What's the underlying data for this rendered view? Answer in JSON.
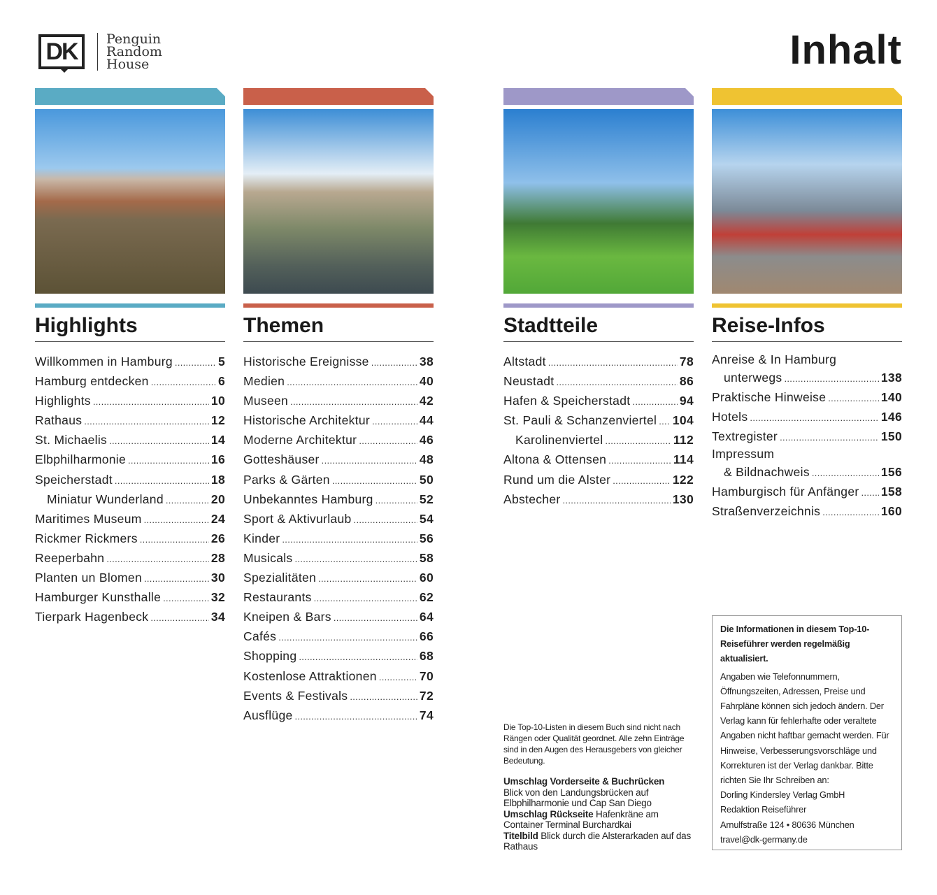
{
  "header": {
    "logo_mark": "DK",
    "publisher_lines": [
      "Penguin",
      "Random",
      "House"
    ],
    "title": "Inhalt"
  },
  "colors": {
    "highlights": "#5aabc4",
    "themen": "#c9604a",
    "stadtteile": "#9e98c8",
    "reise_infos": "#efc332"
  },
  "sections": [
    {
      "key": "highlights",
      "heading": "Highlights",
      "photo": "elbphilharmonie-harbour-photo",
      "entries": [
        {
          "title": "Willkommen in Hamburg",
          "page": "5"
        },
        {
          "title": "Hamburg entdecken",
          "page": "6"
        },
        {
          "title": "Highlights",
          "page": "10"
        },
        {
          "title": "Rathaus",
          "page": "12"
        },
        {
          "title": "St. Michaelis",
          "page": "14"
        },
        {
          "title": "Elbphilharmonie",
          "page": "16"
        },
        {
          "title": "Speicherstadt",
          "page": "18"
        },
        {
          "title": "Miniatur Wunderland",
          "page": "20",
          "indent": true
        },
        {
          "title": "Maritimes Museum",
          "page": "24"
        },
        {
          "title": "Rickmer Rickmers",
          "page": "26"
        },
        {
          "title": "Reeperbahn",
          "page": "28"
        },
        {
          "title": "Planten un Blomen",
          "page": "30"
        },
        {
          "title": "Hamburger Kunsthalle",
          "page": "32"
        },
        {
          "title": "Tierpark Hagenbeck",
          "page": "34"
        }
      ]
    },
    {
      "key": "themen",
      "heading": "Themen",
      "photo": "rathaus-alster-photo",
      "entries": [
        {
          "title": "Historische Ereignisse",
          "page": "38"
        },
        {
          "title": "Medien",
          "page": "40"
        },
        {
          "title": "Museen",
          "page": "42"
        },
        {
          "title": "Historische Architektur",
          "page": "44"
        },
        {
          "title": "Moderne Architektur",
          "page": "46"
        },
        {
          "title": "Gotteshäuser",
          "page": "48"
        },
        {
          "title": "Parks & Gärten",
          "page": "50"
        },
        {
          "title": "Unbekanntes Hamburg",
          "page": "52"
        },
        {
          "title": "Sport & Aktivurlaub",
          "page": "54"
        },
        {
          "title": "Kinder",
          "page": "56"
        },
        {
          "title": "Musicals",
          "page": "58"
        },
        {
          "title": "Spezialitäten",
          "page": "60"
        },
        {
          "title": "Restaurants",
          "page": "62"
        },
        {
          "title": "Kneipen & Bars",
          "page": "64"
        },
        {
          "title": "Cafés",
          "page": "66"
        },
        {
          "title": "Shopping",
          "page": "68"
        },
        {
          "title": "Kostenlose Attraktionen",
          "page": "70"
        },
        {
          "title": "Events & Festivals",
          "page": "72"
        },
        {
          "title": "Ausflüge",
          "page": "74"
        }
      ]
    },
    {
      "key": "stadtteile",
      "heading": "Stadtteile",
      "photo": "st-michaelis-park-photo",
      "entries": [
        {
          "title": "Altstadt",
          "page": "78"
        },
        {
          "title": "Neustadt",
          "page": "86"
        },
        {
          "title": "Hafen & Speicherstadt",
          "page": "94"
        },
        {
          "title": "St. Pauli & Schanzenviertel",
          "page": "104"
        },
        {
          "title": "Karolinenviertel",
          "page": "112",
          "indent": true
        },
        {
          "title": "Altona & Ottensen",
          "page": "114"
        },
        {
          "title": "Rund um die Alster",
          "page": "122"
        },
        {
          "title": "Abstecher",
          "page": "130"
        }
      ]
    },
    {
      "key": "reise_infos",
      "heading": "Reise-Infos",
      "photo": "train-station-photo",
      "entries": [
        {
          "line1": "Anreise & In Hamburg",
          "title": "unterwegs",
          "page": "138"
        },
        {
          "title": "Praktische Hinweise",
          "page": "140"
        },
        {
          "title": "Hotels",
          "page": "146"
        },
        {
          "title": "Textregister",
          "page": "150"
        },
        {
          "line1": "Impressum",
          "title": "& Bildnachweis",
          "page": "156"
        },
        {
          "title": "Hamburgisch für Anfänger",
          "page": "158"
        },
        {
          "title": "Straßenverzeichnis",
          "page": "160"
        }
      ]
    }
  ],
  "note": {
    "intro": "Die Top-10-Listen in diesem Buch sind nicht nach Rängen oder Qualität geordnet. Alle zehn Einträge sind in den Augen des Herausgebers von gleicher Bedeutung.",
    "credits": [
      {
        "label": "Umschlag Vorderseite & Buchrücken",
        "text": "Blick von den Landungsbrücken auf Elbphilharmonie und Cap San Diego"
      },
      {
        "label": "Umschlag Rückseite",
        "text": "Hafenkräne am Container Terminal Burchardkai"
      },
      {
        "label": "Titelbild",
        "text": "Blick durch die Alsterarkaden auf das Rathaus"
      }
    ]
  },
  "infobox": {
    "bold": "Die Informationen in diesem Top-10-Reiseführer werden regelmäßig aktualisiert.",
    "body": "Angaben wie Telefonnummern, Öffnungszeiten, Adressen, Preise und Fahrpläne können sich jedoch ändern. Der Verlag kann für fehlerhafte oder veraltete Angaben nicht haftbar gemacht werden. Für Hinweise, Verbesserungsvorschläge und Korrekturen ist der Verlag dankbar.  Bitte richten Sie Ihr Schreiben an:",
    "address": [
      "Dorling Kindersley Verlag GmbH",
      "Redaktion Reiseführer",
      "Arnulfstraße 124 • 80636 München",
      "travel@dk-germany.de"
    ]
  }
}
